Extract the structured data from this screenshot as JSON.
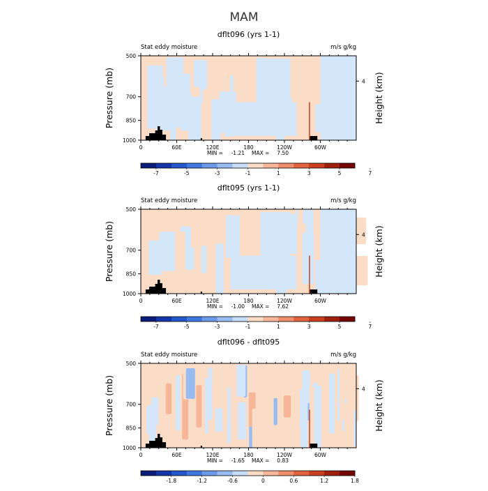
{
  "figure": {
    "suptitle": "MAM",
    "left_corner": "Stat eddy moisture",
    "right_corner": "m/s g/kg"
  },
  "chart_data": [
    {
      "type": "heatmap",
      "title": "dflt096 (yrs 1-1)",
      "left_label": "Stat eddy moisture",
      "right_label": "m/s g/kg",
      "ylabel": "Pressure (mb)",
      "ylabel_right": "Height (km)",
      "yticks": [
        "500",
        "700",
        "850",
        "1000"
      ],
      "yticks_right": [
        "4"
      ],
      "xticks": [
        "0",
        "60E",
        "120E",
        "180",
        "120W",
        "60W"
      ],
      "xlim": [
        0,
        360
      ],
      "ylim": [
        1000,
        500
      ],
      "min_label": "MIN =",
      "min_value": "-1.21",
      "max_label": "MAX =",
      "max_value": "7.50",
      "colorbar_ticks": [
        "-7",
        "-5",
        "-3",
        "-1",
        "1",
        "3",
        "5",
        "7"
      ],
      "colorbar_colors": [
        "#0a1e78",
        "#1436a8",
        "#2456cc",
        "#3e78e0",
        "#6a9ae8",
        "#98bcf2",
        "#c6dcf8",
        "#fbdcc6",
        "#f7b698",
        "#ef8e6c",
        "#e2643e",
        "#c8401e",
        "#a0200e",
        "#740606"
      ],
      "fill_positive": "#fbdcc6",
      "fill_negative": "#d4e6fa"
    },
    {
      "type": "heatmap",
      "title": "dflt095 (yrs 1-1)",
      "left_label": "Stat eddy moisture",
      "right_label": "m/s g/kg",
      "ylabel": "Pressure (mb)",
      "ylabel_right": "Height (km)",
      "yticks": [
        "500",
        "700",
        "850",
        "1000"
      ],
      "yticks_right": [
        "4"
      ],
      "xticks": [
        "0",
        "60E",
        "120E",
        "180",
        "120W",
        "60W"
      ],
      "xlim": [
        0,
        360
      ],
      "ylim": [
        1000,
        500
      ],
      "min_label": "MIN =",
      "min_value": "-1.00",
      "max_label": "MAX =",
      "max_value": "7.62",
      "colorbar_ticks": [
        "-7",
        "-5",
        "-3",
        "-1",
        "1",
        "3",
        "5",
        "7"
      ],
      "colorbar_colors": [
        "#0a1e78",
        "#1436a8",
        "#2456cc",
        "#3e78e0",
        "#6a9ae8",
        "#98bcf2",
        "#c6dcf8",
        "#fbdcc6",
        "#f7b698",
        "#ef8e6c",
        "#e2643e",
        "#c8401e",
        "#a0200e",
        "#740606"
      ],
      "fill_positive": "#fbdcc6",
      "fill_negative": "#d4e6fa"
    },
    {
      "type": "heatmap",
      "title": "dflt096 - dflt095",
      "left_label": "Stat eddy moisture",
      "right_label": "m/s g/kg",
      "ylabel": "Pressure (mb)",
      "ylabel_right": "Height (km)",
      "yticks": [
        "500",
        "700",
        "850",
        "1000"
      ],
      "yticks_right": [
        "4"
      ],
      "xticks": [
        "0",
        "60E",
        "120E",
        "180",
        "120W",
        "60W"
      ],
      "xlim": [
        0,
        360
      ],
      "ylim": [
        1000,
        500
      ],
      "min_label": "MIN =",
      "min_value": "-1.65",
      "max_label": "MAX =",
      "max_value": "0.83",
      "colorbar_ticks": [
        "-1.8",
        "-1.2",
        "-0.6",
        "0",
        "0.6",
        "1.2",
        "1.8"
      ],
      "colorbar_colors": [
        "#0a1e78",
        "#1436a8",
        "#2456cc",
        "#3e78e0",
        "#6a9ae8",
        "#98bcf2",
        "#c6dcf8",
        "#fbdcc6",
        "#f7b698",
        "#ef8e6c",
        "#e2643e",
        "#c8401e",
        "#a0200e",
        "#740606"
      ],
      "fill_positive": "#fbdcc6",
      "fill_negative": "#d4e6fa"
    }
  ]
}
